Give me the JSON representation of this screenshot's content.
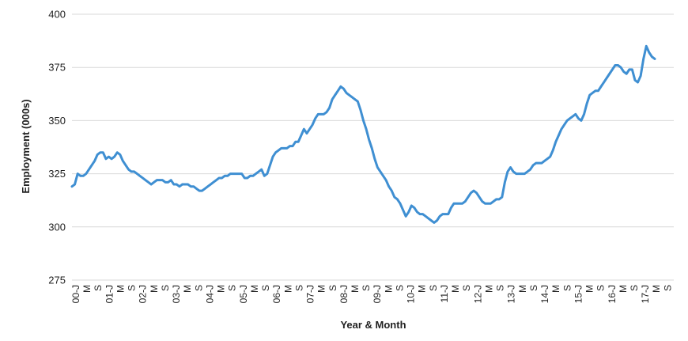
{
  "chart_data": {
    "type": "line",
    "title": "",
    "xlabel": "Year & Month",
    "ylabel": "Employment (000s)",
    "ylim": [
      275,
      400
    ],
    "yticks": [
      275,
      300,
      325,
      350,
      375,
      400
    ],
    "grid": "horizontal",
    "legend": "none",
    "line_color": "#3f8fd2",
    "x_tick_labels": [
      "00-J",
      "M",
      "S",
      "01-J",
      "M",
      "S",
      "02-J",
      "M",
      "S",
      "03-J",
      "M",
      "S",
      "04-J",
      "M",
      "S",
      "05-J",
      "M",
      "S",
      "06-J",
      "M",
      "S",
      "07-J",
      "M",
      "S",
      "08-J",
      "M",
      "S",
      "09-J",
      "M",
      "S",
      "10-J",
      "M",
      "S",
      "11-J",
      "M",
      "S",
      "12-J",
      "M",
      "S",
      "13-J",
      "M",
      "S",
      "14-J",
      "M",
      "S",
      "15-J",
      "M",
      "S",
      "16-J",
      "M",
      "S",
      "17-J",
      "M",
      "S"
    ],
    "series": [
      {
        "values": [
          319,
          320,
          325,
          324,
          324,
          325,
          327,
          329,
          331,
          334,
          335,
          335,
          332,
          333,
          332,
          333,
          335,
          334,
          331,
          329,
          327,
          326,
          326,
          325,
          324,
          323,
          322,
          321,
          320,
          321,
          322,
          322,
          322,
          321,
          321,
          322,
          320,
          320,
          319,
          320,
          320,
          320,
          319,
          319,
          318,
          317,
          317,
          318,
          319,
          320,
          321,
          322,
          323,
          323,
          324,
          324,
          325,
          325,
          325,
          325,
          325,
          323,
          323,
          324,
          324,
          325,
          326,
          327,
          324,
          325,
          329,
          333,
          335,
          336,
          337,
          337,
          337,
          338,
          338,
          340,
          340,
          343,
          346,
          344,
          346,
          348,
          351,
          353,
          353,
          353,
          354,
          356,
          360,
          362,
          364,
          366,
          365,
          363,
          362,
          361,
          360,
          359,
          355,
          350,
          346,
          341,
          337,
          332,
          328,
          326,
          324,
          322,
          319,
          317,
          314,
          313,
          311,
          308,
          305,
          307,
          310,
          309,
          307,
          306,
          306,
          305,
          304,
          303,
          302,
          303,
          305,
          306,
          306,
          306,
          309,
          311,
          311,
          311,
          311,
          312,
          314,
          316,
          317,
          316,
          314,
          312,
          311,
          311,
          311,
          312,
          313,
          313,
          314,
          321,
          326,
          328,
          326,
          325,
          325,
          325,
          325,
          326,
          327,
          329,
          330,
          330,
          330,
          331,
          332,
          333,
          336,
          340,
          343,
          346,
          348,
          350,
          351,
          352,
          353,
          351,
          350,
          353,
          358,
          362,
          363,
          364,
          364,
          366,
          368,
          370,
          372,
          374,
          376,
          376,
          375,
          373,
          372,
          374,
          374,
          369,
          368,
          371,
          379,
          385,
          382,
          380,
          379
        ]
      }
    ]
  }
}
